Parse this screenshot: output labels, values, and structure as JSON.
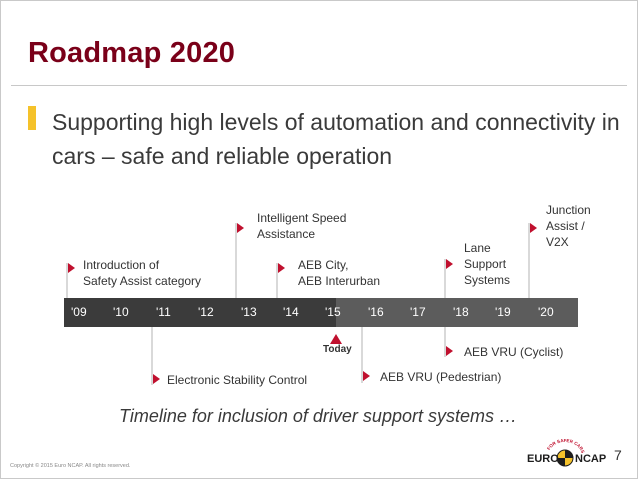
{
  "slide": {
    "title": "Roadmap 2020",
    "subtitle": "Supporting high levels of automation and connectivity in cars – safe and reliable operation",
    "caption": "Timeline for inclusion of driver support systems …",
    "copyright": "Copyright © 2015 Euro NCAP. All rights reserved.",
    "page_number": "7"
  },
  "timeline": {
    "years": [
      "'09",
      "'10",
      "'11",
      "'12",
      "'13",
      "'14",
      "'15",
      "'16",
      "'17",
      "'18",
      "'19",
      "'20"
    ],
    "today_label": "Today",
    "top_events": [
      {
        "label_lines": [
          "Introduction of",
          "Safety Assist category"
        ]
      },
      {
        "label_lines": [
          "Intelligent Speed",
          "Assistance"
        ]
      },
      {
        "label_lines": [
          "AEB City,",
          "AEB Interurban"
        ]
      },
      {
        "label_lines": [
          "Lane",
          "Support",
          "Systems"
        ]
      },
      {
        "label_lines": [
          "Junction",
          "Assist /",
          "V2X"
        ]
      }
    ],
    "bottom_events": [
      {
        "label": "Electronic Stability Control"
      },
      {
        "label": "AEB VRU (Pedestrian)"
      },
      {
        "label": "AEB VRU (Cyclist)"
      }
    ]
  },
  "logo": {
    "text_left": "EURO",
    "text_right": "NCAP",
    "arc_text": "FOR SAFER CARS"
  },
  "colors": {
    "title": "#7a0019",
    "accent_bar": "#f5c22a",
    "timeline_dark": "#3b3b3b",
    "timeline_mid": "#5c5c5c",
    "flag_red": "#c0102e"
  }
}
